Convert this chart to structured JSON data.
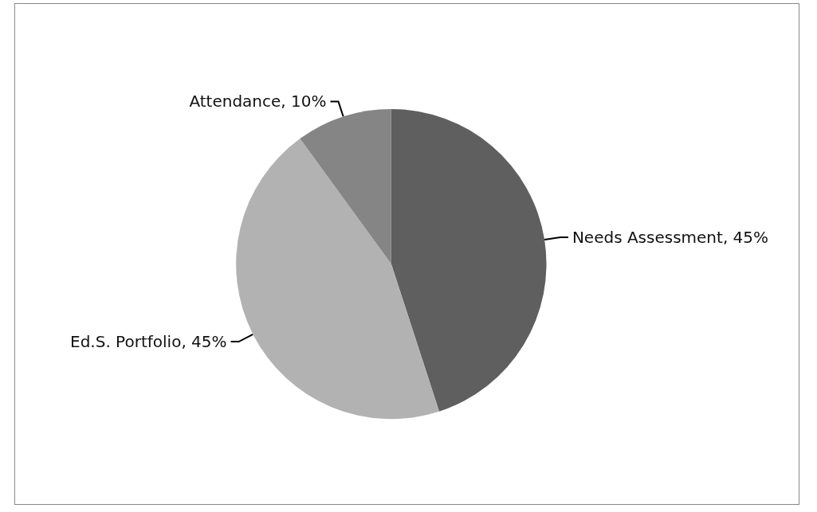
{
  "chart_data": {
    "type": "pie",
    "categories": [
      "Needs Assessment",
      "Ed.S. Portfolio",
      "Attendance"
    ],
    "values": [
      45,
      45,
      10
    ],
    "value_labels": [
      "45%",
      "45%",
      "10%"
    ],
    "colors": [
      "#5f5f5f",
      "#b2b2b2",
      "#858585"
    ],
    "legend": false
  }
}
